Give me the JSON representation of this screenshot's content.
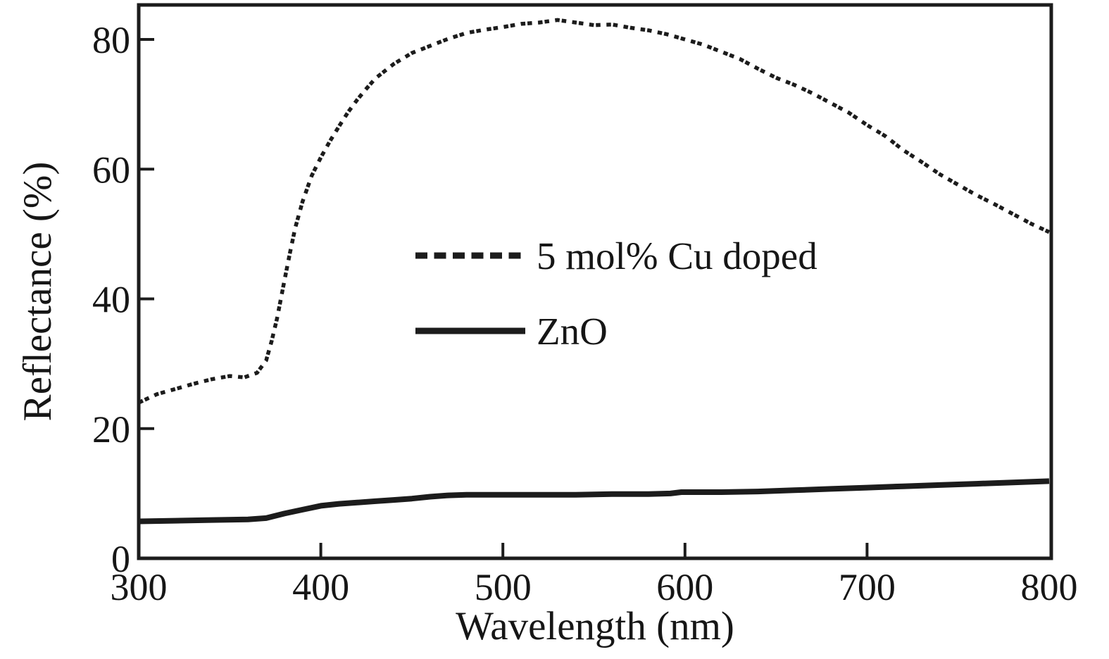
{
  "figure": {
    "background": "#ffffff",
    "ink_color": "#1a1a1a"
  },
  "chart_data": {
    "type": "line",
    "title": "",
    "xlabel": "Wavelength (nm)",
    "ylabel": "Reflectance (%)",
    "xlim": [
      300,
      800
    ],
    "ylim": [
      0,
      85
    ],
    "x_ticks": [
      300,
      400,
      500,
      600,
      700,
      800
    ],
    "y_ticks": [
      0,
      20,
      40,
      60,
      80
    ],
    "grid": false,
    "legend": {
      "position": "inside-center-left",
      "entries": [
        "5 mol% Cu doped",
        "ZnO"
      ]
    },
    "series": [
      {
        "name": "5 mol% Cu doped",
        "line_style": "dashed",
        "color": "#1a1a1a",
        "x": [
          300,
          310,
          320,
          330,
          340,
          350,
          358,
          365,
          370,
          373,
          376,
          380,
          383,
          386,
          390,
          395,
          400,
          405,
          410,
          415,
          420,
          425,
          430,
          440,
          450,
          460,
          470,
          480,
          490,
          500,
          510,
          520,
          530,
          540,
          550,
          560,
          570,
          580,
          590,
          600,
          610,
          620,
          630,
          640,
          650,
          660,
          670,
          680,
          690,
          700,
          710,
          720,
          730,
          740,
          750,
          760,
          770,
          780,
          790,
          800
        ],
        "y": [
          24.0,
          25.3,
          26.1,
          26.9,
          27.6,
          28.1,
          27.9,
          28.6,
          30.5,
          33.5,
          37.0,
          42.8,
          47.0,
          51.0,
          55.0,
          59.0,
          61.8,
          64.3,
          66.6,
          68.8,
          70.7,
          72.4,
          74.0,
          76.2,
          77.9,
          79.0,
          80.1,
          81.0,
          81.5,
          81.9,
          82.4,
          82.6,
          83.0,
          82.6,
          82.2,
          82.3,
          81.8,
          81.4,
          80.8,
          80.0,
          79.2,
          78.1,
          77.0,
          75.5,
          74.1,
          73.0,
          71.7,
          70.2,
          68.7,
          66.8,
          65.1,
          62.9,
          61.1,
          59.2,
          57.6,
          56.0,
          54.6,
          53.1,
          51.6,
          50.3
        ]
      },
      {
        "name": "ZnO",
        "line_style": "solid",
        "color": "#1a1a1a",
        "x": [
          300,
          320,
          340,
          360,
          370,
          380,
          390,
          400,
          410,
          420,
          430,
          440,
          450,
          460,
          470,
          480,
          500,
          520,
          540,
          560,
          580,
          592,
          598,
          620,
          640,
          660,
          680,
          700,
          720,
          740,
          760,
          780,
          800
        ],
        "y": [
          5.7,
          5.8,
          5.9,
          6.0,
          6.2,
          6.9,
          7.5,
          8.1,
          8.4,
          8.6,
          8.8,
          9.0,
          9.2,
          9.5,
          9.7,
          9.8,
          9.8,
          9.8,
          9.8,
          9.9,
          9.9,
          10.0,
          10.2,
          10.2,
          10.3,
          10.5,
          10.7,
          10.9,
          11.1,
          11.3,
          11.5,
          11.7,
          11.9
        ]
      }
    ]
  }
}
